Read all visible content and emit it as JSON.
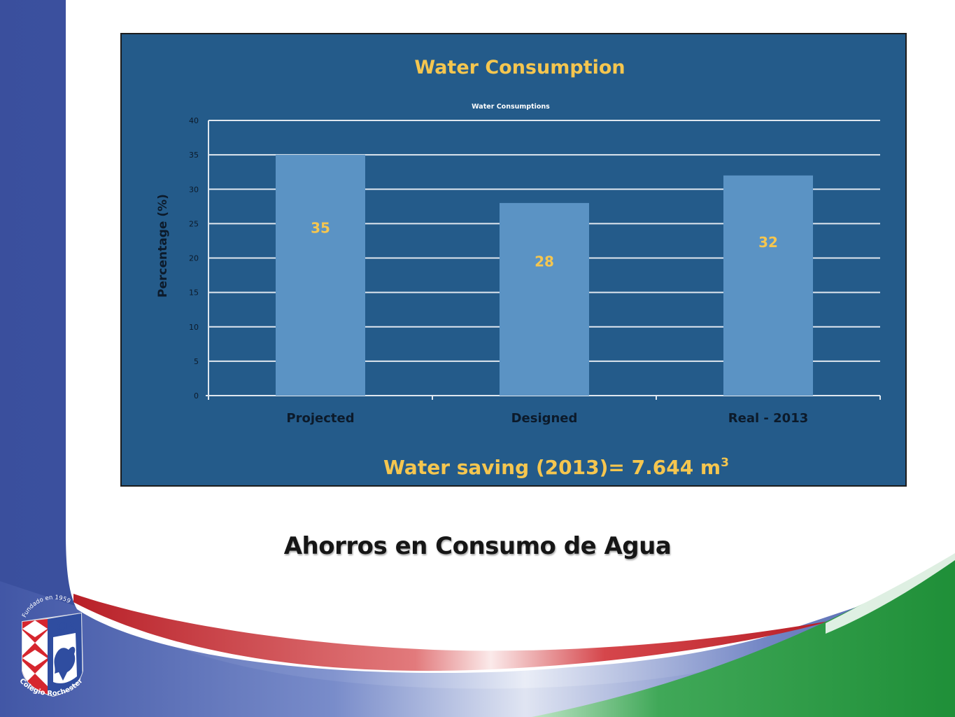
{
  "slide": {
    "caption": "Ahorros en Consumo de Agua"
  },
  "logo": {
    "top_text": "Fundado en 1959",
    "monogram": "CR",
    "bottom_text": "Colegio Rochester"
  },
  "colors": {
    "sidebar": "#3f55a3",
    "panel": "#245b8a",
    "bar": "#5b93c4",
    "accent_text": "#f5c64f",
    "grid": "#dfe7ef",
    "red_swoosh": "#c3272b",
    "green_swoosh": "#22913a"
  },
  "chart_data": {
    "type": "bar",
    "heading": "Water Consumption",
    "title": "Water Consumptions",
    "ylabel": "Percentage (%)",
    "xlabel": "",
    "categories": [
      "Projected",
      "Designed",
      "Real - 2013"
    ],
    "values": [
      35,
      28,
      32
    ],
    "ylim": [
      0,
      40
    ],
    "yticks": [
      0,
      5,
      10,
      15,
      20,
      25,
      30,
      35,
      40
    ],
    "grid": true,
    "footer_prefix": "Water saving (2013)= 7.644 m",
    "footer_superscript": "3"
  }
}
